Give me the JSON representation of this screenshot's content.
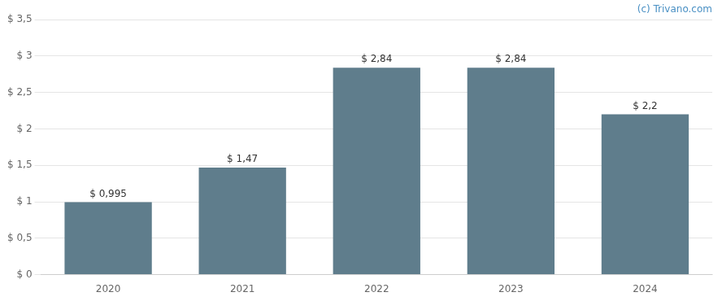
{
  "chart_data": {
    "type": "bar",
    "categories": [
      "2020",
      "2021",
      "2022",
      "2023",
      "2024"
    ],
    "values": [
      0.995,
      1.47,
      2.84,
      2.84,
      2.2
    ],
    "value_labels": [
      "$ 0,995",
      "$ 1,47",
      "$ 2,84",
      "$ 2,84",
      "$ 2,2"
    ],
    "data_labels": true,
    "color": "#5f7d8c",
    "ylim": [
      0,
      3.5
    ],
    "yticks": [
      {
        "value": 0,
        "label": "$ 0"
      },
      {
        "value": 0.5,
        "label": "$ 0,5"
      },
      {
        "value": 1.0,
        "label": "$ 1"
      },
      {
        "value": 1.5,
        "label": "$ 1,5"
      },
      {
        "value": 2.0,
        "label": "$ 2"
      },
      {
        "value": 2.5,
        "label": "$ 2,5"
      },
      {
        "value": 3.0,
        "label": "$ 3"
      },
      {
        "value": 3.5,
        "label": "$ 3,5"
      }
    ],
    "grid": "y",
    "annotations": [
      {
        "text": "(c) Trivano.com",
        "color": "#4a90c4"
      }
    ]
  }
}
